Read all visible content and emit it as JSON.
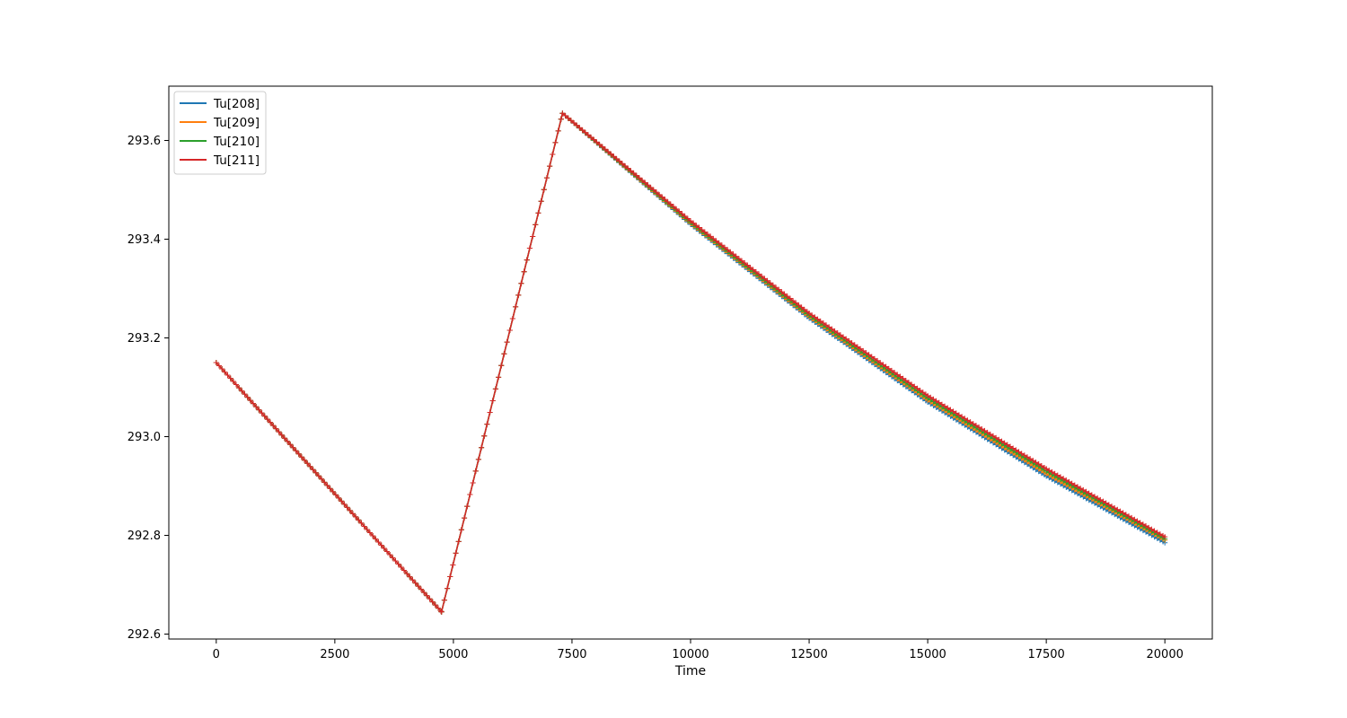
{
  "chart_data": {
    "type": "line",
    "title": "",
    "xlabel": "Time",
    "ylabel": "",
    "xlim": [
      -1000,
      21000
    ],
    "ylim": [
      292.59,
      293.71
    ],
    "xticks": [
      0,
      2500,
      5000,
      7500,
      10000,
      12500,
      15000,
      17500,
      20000
    ],
    "xtick_labels": [
      "0",
      "2500",
      "5000",
      "7500",
      "10000",
      "12500",
      "15000",
      "17500",
      "20000"
    ],
    "yticks": [
      292.6,
      292.8,
      293.0,
      293.2,
      293.4,
      293.6
    ],
    "ytick_labels": [
      "292.6",
      "292.8",
      "293.0",
      "293.2",
      "293.4",
      "293.6"
    ],
    "grid": false,
    "legend_position": "top-left",
    "marker": "+",
    "series": [
      {
        "name": "Tu[208]",
        "color": "#1f77b4",
        "points": [
          [
            0,
            293.15
          ],
          [
            4750,
            292.645
          ],
          [
            7300,
            293.655
          ],
          [
            10000,
            293.43
          ],
          [
            12500,
            293.24
          ],
          [
            15000,
            293.07
          ],
          [
            17500,
            292.92
          ],
          [
            20000,
            292.785
          ]
        ]
      },
      {
        "name": "Tu[209]",
        "color": "#ff7f0e",
        "points": [
          [
            0,
            293.15
          ],
          [
            4750,
            292.645
          ],
          [
            7300,
            293.655
          ],
          [
            10000,
            293.432
          ],
          [
            12500,
            293.243
          ],
          [
            15000,
            293.074
          ],
          [
            17500,
            292.925
          ],
          [
            20000,
            292.79
          ]
        ]
      },
      {
        "name": "Tu[210]",
        "color": "#2ca02c",
        "points": [
          [
            0,
            293.15
          ],
          [
            4750,
            292.645
          ],
          [
            7300,
            293.655
          ],
          [
            10000,
            293.434
          ],
          [
            12500,
            293.246
          ],
          [
            15000,
            293.078
          ],
          [
            17500,
            292.93
          ],
          [
            20000,
            292.793
          ]
        ]
      },
      {
        "name": "Tu[211]",
        "color": "#d62728",
        "points": [
          [
            0,
            293.15
          ],
          [
            4750,
            292.645
          ],
          [
            7300,
            293.655
          ],
          [
            10000,
            293.437
          ],
          [
            12500,
            293.25
          ],
          [
            15000,
            293.083
          ],
          [
            17500,
            292.935
          ],
          [
            20000,
            292.797
          ]
        ]
      }
    ]
  }
}
